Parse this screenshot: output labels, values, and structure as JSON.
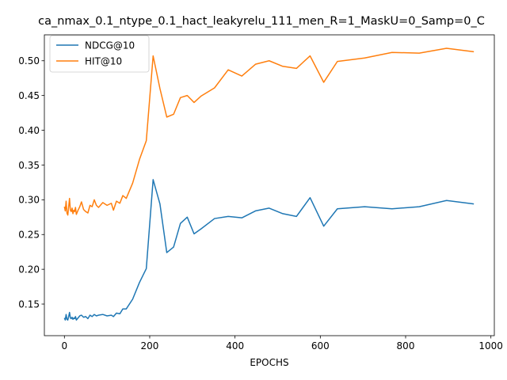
{
  "chart_data": {
    "type": "line",
    "title": "ca_nmax_0.1_ntype_0.1_hact_leakyrelu_111_men_R=1_MaskU=0_Samp=0_C",
    "xlabel": "EPOCHS",
    "ylabel": "",
    "xlim": [
      -47,
      1008
    ],
    "ylim": [
      0.1045,
      0.5373
    ],
    "xticks": [
      0,
      200,
      400,
      600,
      800,
      1000
    ],
    "yticks": [
      0.15,
      0.2,
      0.25,
      0.3,
      0.35,
      0.4,
      0.45,
      0.5
    ],
    "legend_position": "upper-left",
    "grid": false,
    "series": [
      {
        "name": "NDCG@10",
        "color": "#1f77b4",
        "points": [
          [
            0,
            0.13
          ],
          [
            2,
            0.127
          ],
          [
            4,
            0.135
          ],
          [
            6,
            0.128
          ],
          [
            8,
            0.127
          ],
          [
            10,
            0.132
          ],
          [
            12,
            0.138
          ],
          [
            14,
            0.13
          ],
          [
            16,
            0.129
          ],
          [
            18,
            0.131
          ],
          [
            20,
            0.128
          ],
          [
            22,
            0.13
          ],
          [
            24,
            0.129
          ],
          [
            26,
            0.132
          ],
          [
            28,
            0.127
          ],
          [
            32,
            0.13
          ],
          [
            36,
            0.133
          ],
          [
            40,
            0.134
          ],
          [
            45,
            0.131
          ],
          [
            50,
            0.132
          ],
          [
            55,
            0.129
          ],
          [
            60,
            0.134
          ],
          [
            65,
            0.132
          ],
          [
            70,
            0.135
          ],
          [
            75,
            0.133
          ],
          [
            80,
            0.134
          ],
          [
            90,
            0.135
          ],
          [
            100,
            0.133
          ],
          [
            110,
            0.134
          ],
          [
            115,
            0.132
          ],
          [
            122,
            0.137
          ],
          [
            130,
            0.136
          ],
          [
            137,
            0.143
          ],
          [
            145,
            0.143
          ],
          [
            160,
            0.157
          ],
          [
            176,
            0.181
          ],
          [
            192,
            0.201
          ],
          [
            208,
            0.329
          ],
          [
            224,
            0.294
          ],
          [
            240,
            0.224
          ],
          [
            256,
            0.232
          ],
          [
            272,
            0.266
          ],
          [
            288,
            0.275
          ],
          [
            304,
            0.251
          ],
          [
            320,
            0.258
          ],
          [
            352,
            0.273
          ],
          [
            384,
            0.276
          ],
          [
            416,
            0.274
          ],
          [
            448,
            0.284
          ],
          [
            480,
            0.288
          ],
          [
            512,
            0.28
          ],
          [
            544,
            0.276
          ],
          [
            576,
            0.303
          ],
          [
            608,
            0.262
          ],
          [
            640,
            0.287
          ],
          [
            704,
            0.29
          ],
          [
            768,
            0.287
          ],
          [
            832,
            0.29
          ],
          [
            896,
            0.299
          ],
          [
            960,
            0.294
          ]
        ]
      },
      {
        "name": "HIT@10",
        "color": "#ff7f0e",
        "points": [
          [
            0,
            0.29
          ],
          [
            2,
            0.284
          ],
          [
            4,
            0.298
          ],
          [
            6,
            0.281
          ],
          [
            8,
            0.278
          ],
          [
            10,
            0.29
          ],
          [
            12,
            0.302
          ],
          [
            14,
            0.285
          ],
          [
            16,
            0.283
          ],
          [
            18,
            0.288
          ],
          [
            20,
            0.28
          ],
          [
            22,
            0.285
          ],
          [
            24,
            0.283
          ],
          [
            26,
            0.289
          ],
          [
            28,
            0.279
          ],
          [
            32,
            0.285
          ],
          [
            36,
            0.29
          ],
          [
            40,
            0.297
          ],
          [
            45,
            0.286
          ],
          [
            50,
            0.283
          ],
          [
            55,
            0.281
          ],
          [
            60,
            0.292
          ],
          [
            65,
            0.29
          ],
          [
            70,
            0.3
          ],
          [
            75,
            0.292
          ],
          [
            80,
            0.289
          ],
          [
            90,
            0.296
          ],
          [
            100,
            0.292
          ],
          [
            110,
            0.295
          ],
          [
            115,
            0.285
          ],
          [
            122,
            0.298
          ],
          [
            130,
            0.295
          ],
          [
            137,
            0.306
          ],
          [
            145,
            0.302
          ],
          [
            160,
            0.324
          ],
          [
            176,
            0.358
          ],
          [
            192,
            0.385
          ],
          [
            208,
            0.507
          ],
          [
            224,
            0.46
          ],
          [
            240,
            0.419
          ],
          [
            256,
            0.423
          ],
          [
            272,
            0.447
          ],
          [
            288,
            0.45
          ],
          [
            304,
            0.44
          ],
          [
            320,
            0.449
          ],
          [
            352,
            0.461
          ],
          [
            384,
            0.487
          ],
          [
            416,
            0.478
          ],
          [
            448,
            0.495
          ],
          [
            480,
            0.5
          ],
          [
            512,
            0.492
          ],
          [
            544,
            0.489
          ],
          [
            576,
            0.507
          ],
          [
            608,
            0.469
          ],
          [
            640,
            0.499
          ],
          [
            704,
            0.504
          ],
          [
            768,
            0.512
          ],
          [
            832,
            0.511
          ],
          [
            896,
            0.518
          ],
          [
            960,
            0.513
          ]
        ]
      }
    ]
  }
}
